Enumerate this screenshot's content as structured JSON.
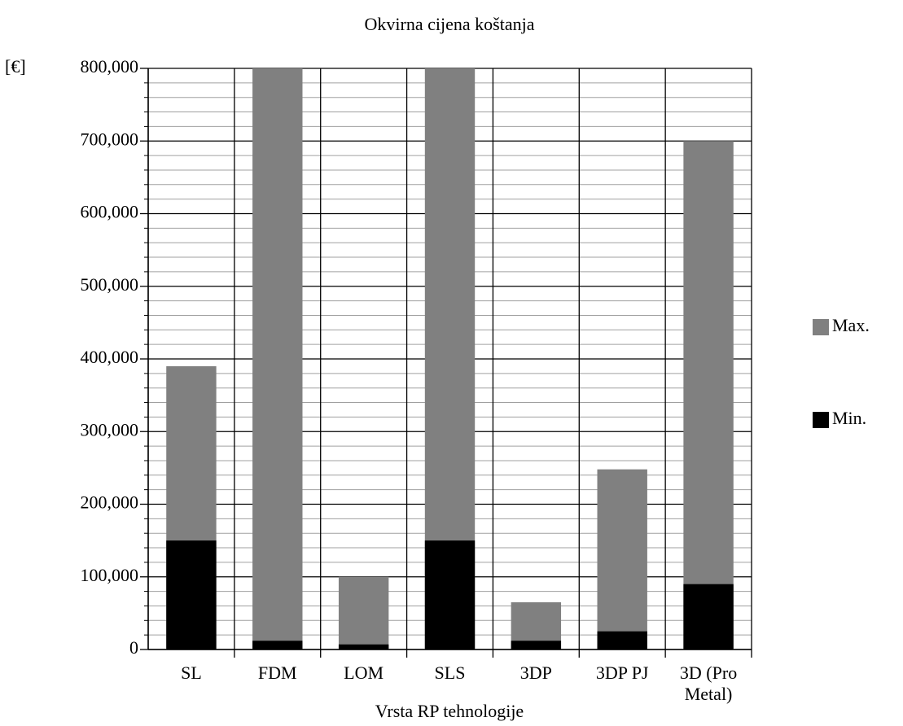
{
  "chart_data": {
    "type": "bar",
    "title": "Okvirna cijena koštanja",
    "y_label": "[€]",
    "x_label": "Vrsta RP tehnologije",
    "categories": [
      "SL",
      "FDM",
      "LOM",
      "SLS",
      "3DP",
      "3DP PJ",
      "3D (Pro Metal)"
    ],
    "series": [
      {
        "name": "Max.",
        "color": "#808080",
        "values": [
          390000,
          800000,
          100000,
          800000,
          65000,
          248000,
          700000
        ]
      },
      {
        "name": "Min.",
        "color": "#000000",
        "values": [
          150000,
          12000,
          7000,
          150000,
          12000,
          25000,
          90000
        ]
      }
    ],
    "ylim": [
      0,
      800000
    ],
    "yticks": [
      0,
      {
        "value": 100000,
        "label": "100,000"
      },
      {
        "value": 200000,
        "label": "200,000"
      },
      {
        "value": 300000,
        "label": "300,000"
      },
      {
        "value": 400000,
        "label": "400,000"
      },
      {
        "value": 500000,
        "label": "500,000"
      },
      {
        "value": 600000,
        "label": "600,000"
      },
      {
        "value": 700000,
        "label": "700,000"
      },
      {
        "value": 800000,
        "label": "800,000"
      }
    ],
    "grid": true,
    "minor_grid": true,
    "legend": "right"
  }
}
